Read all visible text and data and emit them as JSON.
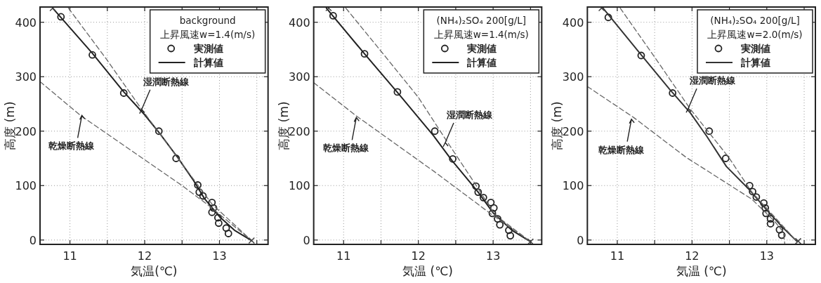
{
  "chart_data": [
    {
      "type": "line",
      "xlabel": "気温(℃)",
      "ylabel": "高度 (m)",
      "legend_title": "background\n上昇風速w=1.4(m/s)",
      "legend": "top right",
      "grid": true,
      "xlim": [
        10.6,
        13.65
      ],
      "ylim": [
        -8,
        428
      ],
      "xticks": [
        11,
        {
          "value": 11.5,
          "label": null
        },
        12,
        {
          "value": 12.5,
          "label": null
        },
        13,
        {
          "value": 13.5,
          "label": null
        }
      ],
      "yticks": [
        0,
        100,
        200,
        300,
        400
      ],
      "annotations": [
        {
          "text": "湿潤断熱線",
          "x": 11.96,
          "y": 240
        },
        {
          "text": "乾燥断熱線",
          "x": 11.16,
          "y": 229
        }
      ],
      "series": [
        {
          "name": "実測値",
          "type": "scatter",
          "marker": "circle",
          "color": "#222222",
          "x": [
            10.88,
            11.3,
            11.72,
            12.19,
            12.42,
            12.71,
            12.73,
            12.78,
            12.9,
            12.92,
            12.9,
            12.98,
            12.99,
            13.09,
            13.12
          ],
          "values": [
            410,
            340,
            270,
            200,
            150,
            101,
            88,
            81,
            69,
            59,
            51,
            41,
            31,
            22,
            12
          ]
        },
        {
          "name": "計算値",
          "type": "line",
          "line_style": "solid",
          "color": "#222222",
          "x": [
            10.77,
            11.3,
            11.72,
            12.0,
            12.2,
            12.45,
            12.65,
            12.8,
            13.0,
            13.2,
            13.43
          ],
          "values": [
            426,
            343,
            272,
            230,
            196,
            150,
            110,
            76,
            43,
            18,
            -1
          ]
        },
        {
          "type": "line",
          "line_style": "dashed",
          "color": "#666666",
          "x": [
            10.98,
            11.5,
            11.96,
            12.5,
            12.9,
            13.43
          ],
          "values": [
            426,
            330,
            240,
            140,
            66,
            -1
          ]
        },
        {
          "type": "line",
          "line_style": "dashed",
          "color": "#666666",
          "x": [
            10.6,
            11.14,
            12.49,
            12.86,
            13.43
          ],
          "values": [
            291,
            229,
            101,
            63,
            -1
          ]
        },
        {
          "type": "scatter",
          "marker": "cross",
          "color": "#444444",
          "x": [
            10.77,
            13.43
          ],
          "values": [
            426,
            -1
          ]
        }
      ]
    },
    {
      "type": "line",
      "xlabel": "気温 (℃)",
      "ylabel": "高度 (m)",
      "legend_title": "(NH₄)₂SO₄ 200[g/L]\n上昇風速w=1.4(m/s)",
      "legend": "top right",
      "grid": true,
      "xlim": [
        10.6,
        13.65
      ],
      "ylim": [
        -8,
        428
      ],
      "xticks": [
        11,
        {
          "value": 11.5,
          "label": null
        },
        12,
        {
          "value": 12.5,
          "label": null
        },
        13,
        {
          "value": 13.5,
          "label": null
        }
      ],
      "yticks": [
        0,
        100,
        200,
        300,
        400
      ],
      "annotations": [
        {
          "text": "湿潤断熱線",
          "x": 12.36,
          "y": 179
        },
        {
          "text": "乾燥断熱線",
          "x": 11.17,
          "y": 225
        }
      ],
      "series": [
        {
          "name": "実測値",
          "type": "scatter",
          "marker": "circle",
          "color": "#222222",
          "x": [
            10.86,
            11.28,
            11.72,
            12.22,
            12.46,
            12.77,
            12.8,
            12.87,
            12.97,
            13.01,
            12.99,
            13.06,
            13.09,
            13.21,
            13.23
          ],
          "values": [
            412,
            342,
            272,
            200,
            149,
            99,
            88,
            78,
            69,
            59,
            49,
            39,
            28,
            18,
            8
          ]
        },
        {
          "name": "計算値",
          "type": "line",
          "line_style": "solid",
          "color": "#222222",
          "x": [
            10.77,
            11.28,
            11.74,
            12.2,
            12.45,
            12.8,
            13.0,
            13.25,
            13.5
          ],
          "values": [
            426,
            342,
            268,
            192,
            146,
            88,
            50,
            18,
            -3
          ]
        },
        {
          "type": "line",
          "line_style": "dashed",
          "color": "#666666",
          "x": [
            11.03,
            11.6,
            12.0,
            12.35,
            12.76,
            13.02,
            13.5
          ],
          "values": [
            426,
            330,
            262,
            188,
            103,
            47,
            -3
          ]
        },
        {
          "type": "line",
          "line_style": "dashed",
          "color": "#666666",
          "x": [
            10.6,
            11.17,
            12.22,
            12.98,
            13.5
          ],
          "values": [
            289,
            228,
            125,
            47,
            -3
          ]
        },
        {
          "type": "scatter",
          "marker": "cross",
          "color": "#444444",
          "x": [
            10.8,
            13.5
          ],
          "values": [
            426,
            -3
          ]
        }
      ]
    },
    {
      "type": "line",
      "xlabel": "気温 (℃)",
      "ylabel": "高度 (m)",
      "legend_title": "(NH₄)₂SO₄ 200[g/L]\n上昇風速w=2.0(m/s)",
      "legend": "top right",
      "grid": true,
      "xlim": [
        10.6,
        13.65
      ],
      "ylim": [
        -8,
        428
      ],
      "xticks": [
        11,
        {
          "value": 11.5,
          "label": null
        },
        12,
        {
          "value": 12.5,
          "label": null
        },
        13,
        {
          "value": 13.5,
          "label": null
        }
      ],
      "yticks": [
        0,
        100,
        200,
        300,
        400
      ],
      "annotations": [
        {
          "text": "湿潤断熱線",
          "x": 11.95,
          "y": 242
        },
        {
          "text": "乾燥断熱線",
          "x": 11.19,
          "y": 222
        }
      ],
      "series": [
        {
          "name": "実測値",
          "type": "scatter",
          "marker": "circle",
          "color": "#222222",
          "x": [
            10.88,
            11.32,
            11.74,
            12.23,
            12.45,
            12.77,
            12.81,
            12.86,
            12.96,
            12.98,
            12.99,
            13.05,
            13.05,
            13.17,
            13.2
          ],
          "values": [
            409,
            339,
            270,
            200,
            150,
            100,
            89,
            79,
            68,
            59,
            49,
            39,
            30,
            19,
            9
          ]
        },
        {
          "name": "計算値",
          "type": "line",
          "line_style": "solid",
          "color": "#333333",
          "x": [
            10.81,
            11.32,
            11.7,
            11.98,
            12.2,
            12.46,
            12.77,
            13.0,
            13.2,
            13.4
          ],
          "values": [
            426,
            340,
            277,
            233,
            190,
            135,
            92,
            55,
            25,
            -2
          ]
        },
        {
          "type": "line",
          "line_style": "dashed",
          "color": "#666666",
          "x": [
            11.04,
            11.5,
            11.98,
            12.49,
            12.8,
            13.4
          ],
          "values": [
            426,
            336,
            240,
            152,
            88,
            -2
          ]
        },
        {
          "type": "line",
          "line_style": "dashed",
          "color": "#666666",
          "x": [
            10.6,
            11.22,
            11.92,
            12.8,
            13.1,
            13.22,
            13.24
          ],
          "values": [
            282,
            225,
            152,
            75,
            35,
            15,
            -6
          ]
        },
        {
          "type": "scatter",
          "marker": "cross",
          "color": "#444444",
          "x": [
            10.79,
            13.42
          ],
          "values": [
            426,
            -2
          ]
        }
      ]
    }
  ]
}
